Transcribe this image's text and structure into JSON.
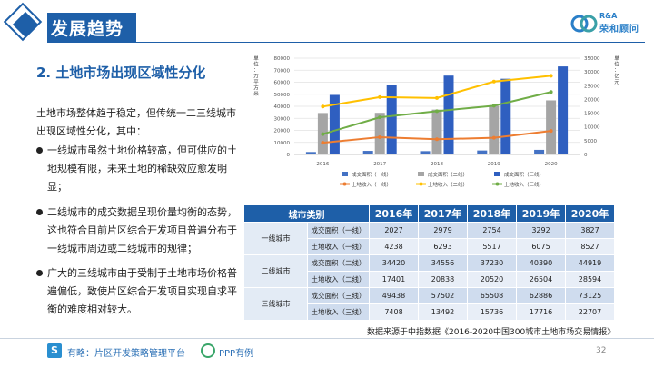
{
  "header": {
    "title": "发展趋势",
    "logo_top": "R&A",
    "logo_name": "荣和顾问"
  },
  "section_title": "2. 土地市场出现区域性分化",
  "intro": "土地市场整体趋于稳定，但传统一二三线城市出现区域性分化，其中：",
  "bullets": [
    "一线城市虽然土地价格较高，但可供应的土地规模有限，未来土地的稀缺效应愈发明显；",
    "二线城市的成交数据呈现价量均衡的态势，这也符合目前片区综合开发项目普遍分布于一线城市周边或二线城市的规律；",
    "广大的三线城市由于受制于土地市场价格普遍偏低，致使片区综合开发项目实现自求平衡的难度相对较大。"
  ],
  "chart_data": {
    "type": "bar",
    "categories": [
      "2016",
      "2017",
      "2018",
      "2019",
      "2020"
    ],
    "y_left_label": "单位：万平方米",
    "y_right_label": "单位：亿元",
    "y_left_ticks": [
      "0",
      "10000",
      "20000",
      "30000",
      "40000",
      "50000",
      "60000",
      "70000",
      "80000"
    ],
    "y_right_ticks": [
      "0",
      "5000",
      "10000",
      "15000",
      "20000",
      "25000",
      "30000",
      "35000"
    ],
    "ylim_left": [
      0,
      80000
    ],
    "ylim_right": [
      0,
      35000
    ],
    "bar_series": [
      {
        "name": "成交面积（一线）",
        "color": "#4472c4",
        "values": [
          2027,
          2979,
          2754,
          3292,
          3827
        ]
      },
      {
        "name": "成交面积（二线）",
        "color": "#a5a5a5",
        "values": [
          34420,
          34556,
          37230,
          40390,
          44919
        ]
      },
      {
        "name": "成交面积（三线）",
        "color": "#2f5fc0",
        "values": [
          49438,
          57502,
          65508,
          62886,
          73125
        ]
      }
    ],
    "line_series": [
      {
        "name": "土地收入（一线）",
        "color": "#ed7d31",
        "values": [
          4238,
          6293,
          5517,
          6075,
          8527
        ]
      },
      {
        "name": "土地收入（二线）",
        "color": "#ffc000",
        "values": [
          17401,
          20838,
          20520,
          26504,
          28594
        ]
      },
      {
        "name": "土地收入（三线）",
        "color": "#70ad47",
        "values": [
          7408,
          13492,
          15736,
          17716,
          22707
        ]
      }
    ],
    "legend_position": "bottom",
    "grid": true
  },
  "table": {
    "header_label": "城市类别",
    "years": [
      "2016年",
      "2017年",
      "2018年",
      "2019年",
      "2020年"
    ],
    "groups": [
      {
        "name": "一线城市",
        "rows": [
          {
            "label": "成交面积（一线）",
            "values": [
              "2027",
              "2979",
              "2754",
              "3292",
              "3827"
            ]
          },
          {
            "label": "土地收入（一线）",
            "values": [
              "4238",
              "6293",
              "5517",
              "6075",
              "8527"
            ]
          }
        ]
      },
      {
        "name": "二线城市",
        "rows": [
          {
            "label": "成交面积（二线）",
            "values": [
              "34420",
              "34556",
              "37230",
              "40390",
              "44919"
            ]
          },
          {
            "label": "土地收入（二线）",
            "values": [
              "17401",
              "20838",
              "20520",
              "26504",
              "28594"
            ]
          }
        ]
      },
      {
        "name": "三线城市",
        "rows": [
          {
            "label": "成交面积（三线）",
            "values": [
              "49438",
              "57502",
              "65508",
              "62886",
              "73125"
            ]
          },
          {
            "label": "土地收入（三线）",
            "values": [
              "7408",
              "13492",
              "15736",
              "17716",
              "22707"
            ]
          }
        ]
      }
    ]
  },
  "source_note": "数据来源于中指数据《2016-2020中国300城市土地市场交易情报》",
  "footer": {
    "logo_glyph": "S",
    "text": "有略：片区开发策略管理平台",
    "ppp_text": "PPP有例",
    "page": "32"
  }
}
